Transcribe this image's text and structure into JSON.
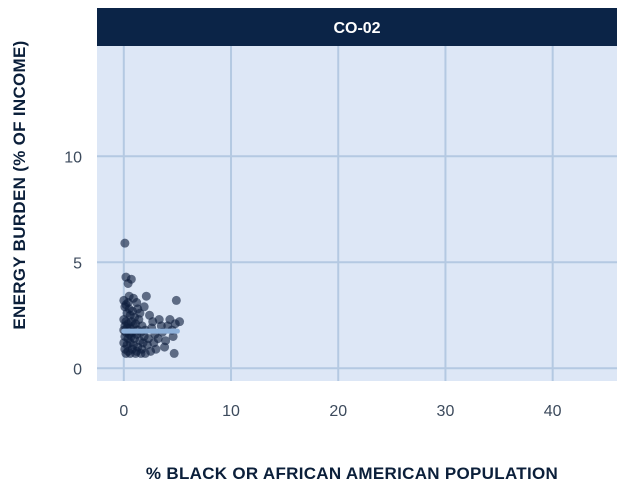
{
  "chart_data": {
    "type": "scatter",
    "facet_title": "CO-02",
    "xlabel": "% BLACK OR AFRICAN AMERICAN POPULATION",
    "ylabel": "ENERGY BURDEN (% OF INCOME)",
    "xlim": [
      -2.5,
      46
    ],
    "ylim": [
      -0.6,
      15.2
    ],
    "x_ticks": [
      0,
      10,
      20,
      30,
      40
    ],
    "y_ticks": [
      0,
      5,
      10
    ],
    "grid": true,
    "legend": "none",
    "colors": {
      "panel_background": "#dde7f6",
      "grid": "#b4c9e2",
      "header": "#0b2447",
      "point": "#0e1f3d",
      "trend": "#8eb1da"
    },
    "trend_line": {
      "x": [
        0,
        5
      ],
      "y": [
        1.75,
        1.75
      ]
    },
    "points": [
      {
        "x": 0.1,
        "y": 5.9
      },
      {
        "x": 0.2,
        "y": 4.3
      },
      {
        "x": 0.4,
        "y": 4.0
      },
      {
        "x": 0.7,
        "y": 4.2
      },
      {
        "x": 0.0,
        "y": 3.2
      },
      {
        "x": 0.2,
        "y": 3.0
      },
      {
        "x": 0.4,
        "y": 3.1
      },
      {
        "x": 0.1,
        "y": 2.9
      },
      {
        "x": 0.5,
        "y": 2.8
      },
      {
        "x": 0.8,
        "y": 2.7
      },
      {
        "x": 0.3,
        "y": 2.6
      },
      {
        "x": 0.6,
        "y": 2.5
      },
      {
        "x": 1.0,
        "y": 2.4
      },
      {
        "x": 0.0,
        "y": 2.3
      },
      {
        "x": 0.2,
        "y": 2.2
      },
      {
        "x": 0.4,
        "y": 2.1
      },
      {
        "x": 0.7,
        "y": 2.2
      },
      {
        "x": 1.1,
        "y": 2.1
      },
      {
        "x": 1.4,
        "y": 2.3
      },
      {
        "x": 0.1,
        "y": 2.0
      },
      {
        "x": 0.3,
        "y": 1.9
      },
      {
        "x": 0.6,
        "y": 1.9
      },
      {
        "x": 0.9,
        "y": 2.0
      },
      {
        "x": 1.3,
        "y": 1.8
      },
      {
        "x": 1.7,
        "y": 2.0
      },
      {
        "x": 0.0,
        "y": 1.8
      },
      {
        "x": 0.2,
        "y": 1.7
      },
      {
        "x": 0.5,
        "y": 1.6
      },
      {
        "x": 0.8,
        "y": 1.7
      },
      {
        "x": 1.2,
        "y": 1.6
      },
      {
        "x": 1.6,
        "y": 1.7
      },
      {
        "x": 2.0,
        "y": 1.8
      },
      {
        "x": 0.1,
        "y": 1.5
      },
      {
        "x": 0.4,
        "y": 1.4
      },
      {
        "x": 0.7,
        "y": 1.5
      },
      {
        "x": 1.0,
        "y": 1.4
      },
      {
        "x": 1.5,
        "y": 1.3
      },
      {
        "x": 1.9,
        "y": 1.5
      },
      {
        "x": 2.3,
        "y": 1.4
      },
      {
        "x": 0.0,
        "y": 1.2
      },
      {
        "x": 0.3,
        "y": 1.1
      },
      {
        "x": 0.6,
        "y": 1.2
      },
      {
        "x": 0.9,
        "y": 1.1
      },
      {
        "x": 1.3,
        "y": 1.0
      },
      {
        "x": 1.8,
        "y": 1.2
      },
      {
        "x": 2.2,
        "y": 1.1
      },
      {
        "x": 0.1,
        "y": 0.9
      },
      {
        "x": 0.4,
        "y": 0.8
      },
      {
        "x": 0.8,
        "y": 0.9
      },
      {
        "x": 1.2,
        "y": 0.8
      },
      {
        "x": 1.7,
        "y": 0.9
      },
      {
        "x": 0.2,
        "y": 0.7
      },
      {
        "x": 0.6,
        "y": 0.7
      },
      {
        "x": 1.1,
        "y": 0.7
      },
      {
        "x": 1.6,
        "y": 0.7
      },
      {
        "x": 2.5,
        "y": 0.8
      },
      {
        "x": 1.2,
        "y": 3.1
      },
      {
        "x": 1.9,
        "y": 2.9
      },
      {
        "x": 2.1,
        "y": 3.4
      },
      {
        "x": 1.5,
        "y": 2.6
      },
      {
        "x": 2.4,
        "y": 2.5
      },
      {
        "x": 2.7,
        "y": 2.2
      },
      {
        "x": 2.6,
        "y": 1.9
      },
      {
        "x": 2.9,
        "y": 1.6
      },
      {
        "x": 2.8,
        "y": 1.2
      },
      {
        "x": 3.0,
        "y": 0.9
      },
      {
        "x": 3.3,
        "y": 2.3
      },
      {
        "x": 3.6,
        "y": 1.7
      },
      {
        "x": 3.9,
        "y": 1.3
      },
      {
        "x": 4.1,
        "y": 2.0
      },
      {
        "x": 4.3,
        "y": 2.3
      },
      {
        "x": 4.5,
        "y": 1.8
      },
      {
        "x": 4.8,
        "y": 2.1
      },
      {
        "x": 5.2,
        "y": 2.2
      },
      {
        "x": 4.9,
        "y": 3.2
      },
      {
        "x": 4.6,
        "y": 1.5
      },
      {
        "x": 4.7,
        "y": 0.7
      },
      {
        "x": 3.8,
        "y": 1.0
      },
      {
        "x": 3.5,
        "y": 2.0
      },
      {
        "x": 3.2,
        "y": 1.4
      },
      {
        "x": 2.0,
        "y": 0.7
      },
      {
        "x": 0.9,
        "y": 3.3
      },
      {
        "x": 1.3,
        "y": 2.8
      },
      {
        "x": 0.5,
        "y": 3.4
      }
    ]
  }
}
